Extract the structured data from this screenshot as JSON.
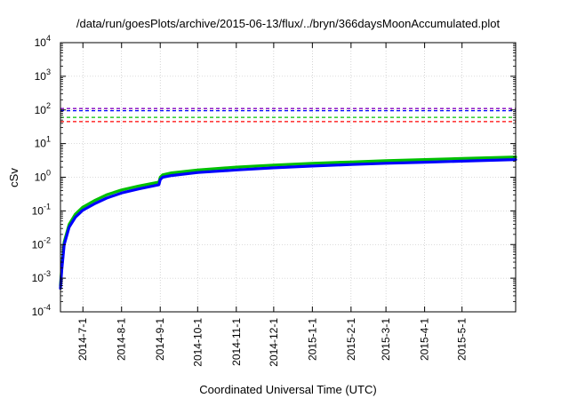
{
  "chart_data": {
    "type": "line",
    "title": "/data/run/goesPlots/archive/2015-06-13/flux/../bryn/366daysMoonAccumulated.plot",
    "xlabel": "Coordinated Universal Time (UTC)",
    "ylabel": "cSv",
    "y_scale": "log",
    "ylim": [
      0.0001,
      10000
    ],
    "xlim": [
      "2014-06-13",
      "2015-06-13"
    ],
    "grid": true,
    "legend": "none",
    "x_ticks": [
      "2014-7-1",
      "2014-8-1",
      "2014-9-1",
      "2014-10-1",
      "2014-11-1",
      "2014-12-1",
      "2015-1-1",
      "2015-2-1",
      "2015-3-1",
      "2015-4-1",
      "2015-5-1"
    ],
    "y_ticks": [
      {
        "base": "10",
        "exp": "-4"
      },
      {
        "base": "10",
        "exp": "-3"
      },
      {
        "base": "10",
        "exp": "-2"
      },
      {
        "base": "10",
        "exp": "-1"
      },
      {
        "base": "10",
        "exp": "0"
      },
      {
        "base": "10",
        "exp": "1"
      },
      {
        "base": "10",
        "exp": "2"
      },
      {
        "base": "10",
        "exp": "3"
      },
      {
        "base": "10",
        "exp": "4"
      }
    ],
    "thresholds": [
      {
        "value": 110,
        "color": "#8000c0"
      },
      {
        "value": 95,
        "color": "#0000ff"
      },
      {
        "value": 60,
        "color": "#00c000"
      },
      {
        "value": 45,
        "color": "#ff0000"
      }
    ],
    "series": [
      {
        "color": "#00c000",
        "x": [
          "2014-06-13",
          "2014-06-14",
          "2014-06-16",
          "2014-06-20",
          "2014-06-25",
          "2014-07-01",
          "2014-07-10",
          "2014-07-20",
          "2014-08-01",
          "2014-08-15",
          "2014-08-31",
          "2014-09-01",
          "2014-09-03",
          "2014-09-10",
          "2014-10-01",
          "2014-11-01",
          "2014-12-01",
          "2015-01-01",
          "2015-02-01",
          "2015-03-01",
          "2015-04-01",
          "2015-05-01",
          "2015-06-13"
        ],
        "y": [
          0.0006,
          0.002,
          0.012,
          0.04,
          0.08,
          0.13,
          0.2,
          0.3,
          0.42,
          0.55,
          0.72,
          1.0,
          1.18,
          1.35,
          1.65,
          2.0,
          2.3,
          2.6,
          2.85,
          3.1,
          3.35,
          3.6,
          4.0
        ]
      },
      {
        "color": "#0000ff",
        "x": [
          "2014-06-13",
          "2014-06-14",
          "2014-06-16",
          "2014-06-20",
          "2014-06-25",
          "2014-07-01",
          "2014-07-10",
          "2014-07-20",
          "2014-08-01",
          "2014-08-15",
          "2014-08-31",
          "2014-09-01",
          "2014-09-03",
          "2014-09-10",
          "2014-10-01",
          "2014-11-01",
          "2014-12-01",
          "2015-01-01",
          "2015-02-01",
          "2015-03-01",
          "2015-04-01",
          "2015-05-01",
          "2015-06-13"
        ],
        "y": [
          0.0005,
          0.0017,
          0.01,
          0.033,
          0.065,
          0.105,
          0.16,
          0.24,
          0.34,
          0.45,
          0.6,
          0.85,
          1.0,
          1.12,
          1.38,
          1.65,
          1.9,
          2.15,
          2.38,
          2.6,
          2.8,
          3.0,
          3.35
        ]
      }
    ]
  }
}
